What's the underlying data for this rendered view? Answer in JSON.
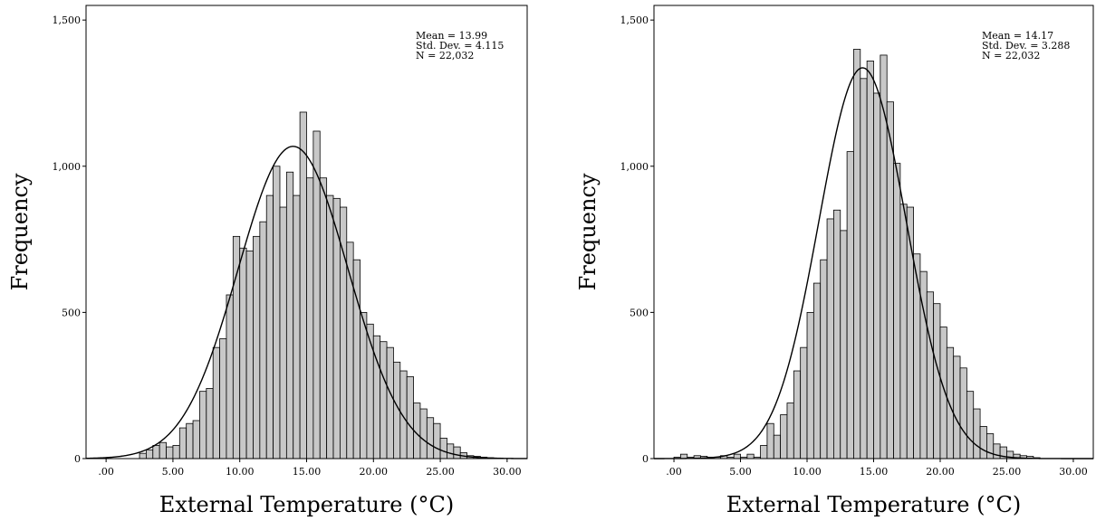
{
  "chart_data": [
    {
      "type": "bar",
      "xlabel": "External Temperature (°C)",
      "ylabel": "Frequency",
      "xlim": [
        -1.5,
        31.5
      ],
      "ylim": [
        0,
        1550
      ],
      "x_ticks": [
        0,
        5,
        10,
        15,
        20,
        25,
        30
      ],
      "x_tick_labels": [
        ".00",
        "5.00",
        "10.00",
        "15.00",
        "20.00",
        "25.00",
        "30.00"
      ],
      "y_ticks": [
        0,
        500,
        1000,
        1500
      ],
      "y_tick_labels": [
        "0",
        "500",
        "1,000",
        "1,500"
      ],
      "bin_width": 0.5,
      "bin_start": 2.5,
      "values": [
        18,
        30,
        45,
        55,
        40,
        45,
        105,
        120,
        130,
        230,
        240,
        380,
        410,
        560,
        760,
        720,
        710,
        760,
        810,
        900,
        1000,
        860,
        980,
        900,
        1185,
        960,
        1120,
        960,
        900,
        890,
        860,
        740,
        680,
        500,
        460,
        420,
        400,
        380,
        330,
        300,
        280,
        190,
        170,
        140,
        120,
        70,
        50,
        40,
        20,
        10,
        8,
        5,
        3,
        2
      ],
      "normal_fit": {
        "mean": 13.99,
        "std": 4.115,
        "n": 22032
      },
      "grid": false,
      "stats": [
        "Mean = 13.99",
        "Std. Dev. = 4.115",
        "N = 22,032"
      ]
    },
    {
      "type": "bar",
      "xlabel": "External Temperature (°C)",
      "ylabel": "Frequency",
      "xlim": [
        -1.5,
        31.5
      ],
      "ylim": [
        0,
        1550
      ],
      "x_ticks": [
        0,
        5,
        10,
        15,
        20,
        25,
        30
      ],
      "x_tick_labels": [
        ".00",
        "5.00",
        "10.00",
        "15.00",
        "20.00",
        "25.00",
        "30.00"
      ],
      "y_ticks": [
        0,
        500,
        1000,
        1500
      ],
      "y_tick_labels": [
        "0",
        "500",
        "1,000",
        "1,500"
      ],
      "bin_width": 0.5,
      "bin_start": 0.0,
      "values": [
        5,
        15,
        5,
        10,
        8,
        5,
        5,
        10,
        5,
        15,
        5,
        15,
        5,
        45,
        120,
        80,
        150,
        190,
        300,
        380,
        500,
        600,
        680,
        820,
        850,
        780,
        1050,
        1400,
        1300,
        1360,
        1250,
        1380,
        1220,
        1010,
        870,
        860,
        700,
        640,
        570,
        530,
        450,
        380,
        350,
        310,
        230,
        170,
        110,
        85,
        50,
        40,
        25,
        15,
        10,
        8,
        3
      ],
      "normal_fit": {
        "mean": 14.17,
        "std": 3.288,
        "n": 22032
      },
      "grid": false,
      "stats": [
        "Mean = 14.17",
        "Std. Dev. = 3.288",
        "N = 22,032"
      ]
    }
  ]
}
